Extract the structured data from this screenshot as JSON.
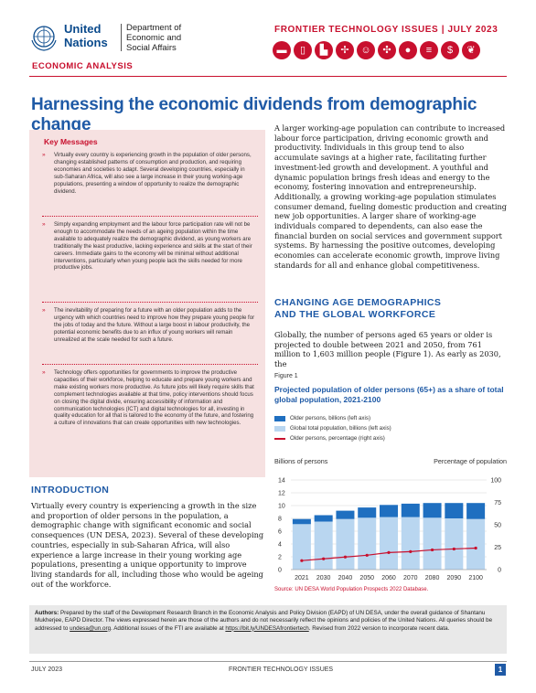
{
  "header": {
    "org_line1": "United",
    "org_line2": "Nations",
    "dept": "Department of Economic and Social Affairs",
    "series": "FRONTIER TECHNOLOGY ISSUES |  JULY 2023",
    "section": "ECONOMIC ANALYSIS",
    "icons": [
      "car-icon",
      "phone-icon",
      "factory-icon",
      "drone-icon",
      "robot-icon",
      "wind-turbine-icon",
      "piggy-bank-icon",
      "coins-icon",
      "dollar-icon",
      "leaf-icon"
    ]
  },
  "title": "Harnessing the economic dividends from demographic change",
  "key_messages": {
    "heading": "Key Messages",
    "items": [
      "Virtually every country is experiencing growth in the population of older persons, changing established patterns of consumption and production, and requiring economies and societies to adapt. Several developing countries, especially in sub-Saharan Africa, will also see a large increase in their young working-age populations, presenting a window of opportunity to realize the demographic dividend.",
      "Simply expanding employment and the labour force participation rate will not be enough to accommodate the needs of an ageing population within the time available to adequately realize the demographic dividend, as young workers are traditionally the least productive, lacking experience and skills at the start of their careers. Immediate gains to the economy will be minimal without additional interventions, particularly when young people lack the skills needed for more productive jobs.",
      "The inevitability of preparing for a future with an older population adds to the urgency with which countries need to improve how they prepare young people for the jobs of today and the future. Without a large boost in labour productivity, the potential economic benefits due to an influx of young workers will remain unrealized at the scale needed for such a future.",
      "Technology offers opportunities for governments to improve the productive capacities of their workforce, helping to educate and prepare young workers and make existing workers more productive. As future jobs will likely require skills that complement technologies available at that time, policy interventions should focus on closing the digital divide, ensuring accessibility of information and communication technologies (ICT) and digital technologies for all, investing in quality education for all that is tailored to the economy of the future, and fostering a culture of innovations that can create opportunities with new technologies."
    ]
  },
  "intro": {
    "heading": "INTRODUCTION",
    "text": "Virtually every country is experiencing a growth in the size and proportion of older persons in the population, a demographic change with significant economic and social consequences (UN DESA, 2023). Several of these developing countries, especially in sub-Saharan Africa, will also experience a large increase in their young working age populations, presenting a unique opportunity to improve living standards for all, including those who would be ageing out of the workforce."
  },
  "right_text": "A larger working-age population can contribute to increased labour force participation, driving economic growth and productivity. Individuals in this group tend to also accumulate savings at a higher rate, facilitating further investment-led growth and development. A youthful and dynamic population brings fresh ideas and energy to the economy, fostering innovation and entrepreneurship. Additionally, a growing working-age population stimulates consumer demand, fueling domestic production and creating new job opportunities. A larger share of working-age individuals compared to dependents, can also ease the financial burden on social services and government support systems. By harnessing the positive outcomes, developing economies can accelerate economic growth, improve living standards for all and enhance global competitiveness.",
  "age_section": {
    "heading_line1": "CHANGING AGE DEMOGRAPHICS",
    "heading_line2": "AND THE GLOBAL WORKFORCE",
    "text": "Globally, the number of persons aged 65 years or older is projected to double between 2021 and 2050, from 761 million to 1,603 million people (Figure 1). As early as 2030, the"
  },
  "figure": {
    "label": "Figure 1",
    "title": "Projected population of older persons (65+) as a share of total global population, 2021-2100",
    "source": "Source: UN DESA World Population Prospects 2022 Database."
  },
  "chart_data": {
    "type": "bar",
    "categories": [
      "2021",
      "2030",
      "2040",
      "2050",
      "2060",
      "2070",
      "2080",
      "2090",
      "2100"
    ],
    "series": [
      {
        "name": "Older persons, billions (left axis)",
        "values": [
          0.8,
          1.0,
          1.3,
          1.6,
          1.9,
          2.1,
          2.3,
          2.4,
          2.5
        ],
        "color": "#1f6fc0"
      },
      {
        "name": "Global total population, billions (left axis)",
        "values": [
          7.9,
          8.5,
          9.2,
          9.7,
          10.1,
          10.3,
          10.4,
          10.4,
          10.4
        ],
        "color": "#b9d6f0"
      },
      {
        "name": "Older persons, percentage (right axis)",
        "values": [
          10,
          12,
          14,
          16,
          19,
          20,
          22,
          23,
          24
        ],
        "color": "#c8102e",
        "axis": "right"
      }
    ],
    "left_axis_label": "Billions of persons",
    "right_axis_label": "Percentage of population",
    "left_ticks": [
      "0",
      "2",
      "4",
      "6",
      "8",
      "10",
      "12",
      "14"
    ],
    "right_ticks": [
      "0",
      "25",
      "50",
      "75",
      "100"
    ],
    "ylim_left": [
      0,
      14
    ],
    "ylim_right": [
      0,
      100
    ],
    "grid": true,
    "legend_position": "top"
  },
  "authors": {
    "label": "Authors:",
    "text": " Prepared by the staff of the Development Research Branch in the Economic Analysis and Policy Division (EAPD) of UN DESA, under the overall guidance of Shantanu Mukherjee, EAPD Director. The views expressed herein are those of the authors and do not necessarily reflect the opinions and policies of the United Nations. All queries should be addressed to ",
    "email": "undesa@un.org",
    "text2": ". Additional issues of the FTI are available at ",
    "link": "https://bit.ly/UNDESAfrontiertech",
    "text3": ". Revised from 2022 version to incorporate recent data."
  },
  "footer": {
    "date": "JULY 2023",
    "title": "FRONTIER TECHNOLOGY ISSUES",
    "page": "1"
  }
}
